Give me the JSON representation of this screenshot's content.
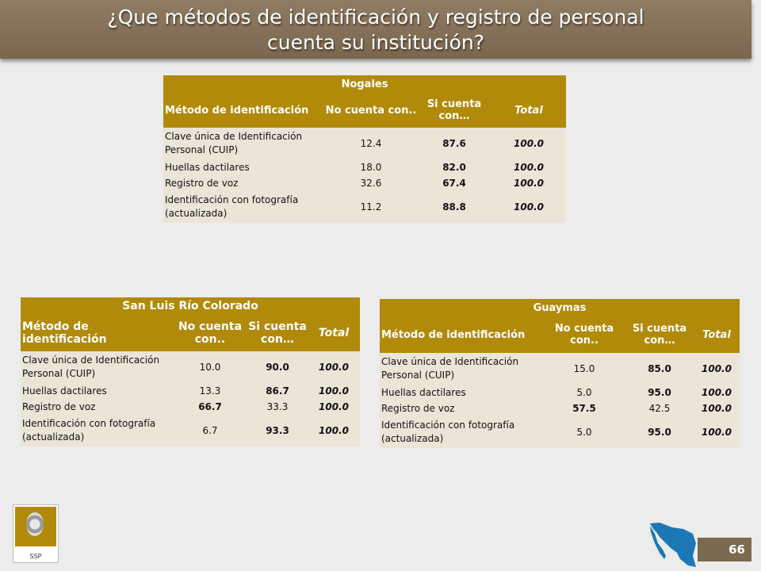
{
  "title": {
    "line1": "¿Que métodos de identificación y registro de personal",
    "line2": "cuenta su institución?"
  },
  "tables": {
    "nogales": {
      "city": "Nogales",
      "col_method": "Método de identificación",
      "col_no": "No cuenta con..",
      "col_si": "Si cuenta con…",
      "col_total": "Total",
      "rows": [
        {
          "label": "Clave única de Identificación Personal (CUIP)",
          "no": "12.4",
          "si": "87.6",
          "total": "100.0"
        },
        {
          "label": "Huellas dactilares",
          "no": "18.0",
          "si": "82.0",
          "total": "100.0"
        },
        {
          "label": "Registro de voz",
          "no": "32.6",
          "si": "67.4",
          "total": "100.0"
        },
        {
          "label": "Identificación con fotografía (actualizada)",
          "no": "11.2",
          "si": "88.8",
          "total": "100.0"
        }
      ]
    },
    "san_luis": {
      "city": "San Luis Río Colorado",
      "col_method": "Método de identificación",
      "col_no": "No cuenta con..",
      "col_si": "Si cuenta con…",
      "col_total": "Total",
      "rows": [
        {
          "label": "Clave única de Identificación Personal (CUIP)",
          "no": "10.0",
          "si": "90.0",
          "total": "100.0"
        },
        {
          "label": "Huellas dactilares",
          "no": "13.3",
          "si": "86.7",
          "total": "100.0"
        },
        {
          "label": "Registro de voz",
          "no": "66.7",
          "si": "33.3",
          "total": "100.0"
        },
        {
          "label": "Identificación con fotografía (actualizada)",
          "no": "6.7",
          "si": "93.3",
          "total": "100.0"
        }
      ]
    },
    "guaymas": {
      "city": "Guaymas",
      "col_method": "Método de identificación",
      "col_no": "No cuenta con..",
      "col_si": "Si cuenta con…",
      "col_total": "Total",
      "rows": [
        {
          "label": "Clave única de Identificación Personal (CUIP)",
          "no": "15.0",
          "si": "85.0",
          "total": "100.0"
        },
        {
          "label": "Huellas dactilares",
          "no": "5.0",
          "si": "95.0",
          "total": "100.0"
        },
        {
          "label": "Registro de voz",
          "no": "57.5",
          "si": "42.5",
          "total": "100.0"
        },
        {
          "label": "Identificación con fotografía (actualizada)",
          "no": "5.0",
          "si": "95.0",
          "total": "100.0"
        }
      ]
    }
  },
  "logo": {
    "label": "SSP"
  },
  "page_number": "66",
  "colors": {
    "header_bg": "#b18a0a",
    "row_bg": "#ebe5d8",
    "title_bar": "#8a765d",
    "map_blue": "#1b78b5"
  },
  "icons": {
    "seal": "government-seal-icon",
    "map": "sonora-map-icon"
  }
}
